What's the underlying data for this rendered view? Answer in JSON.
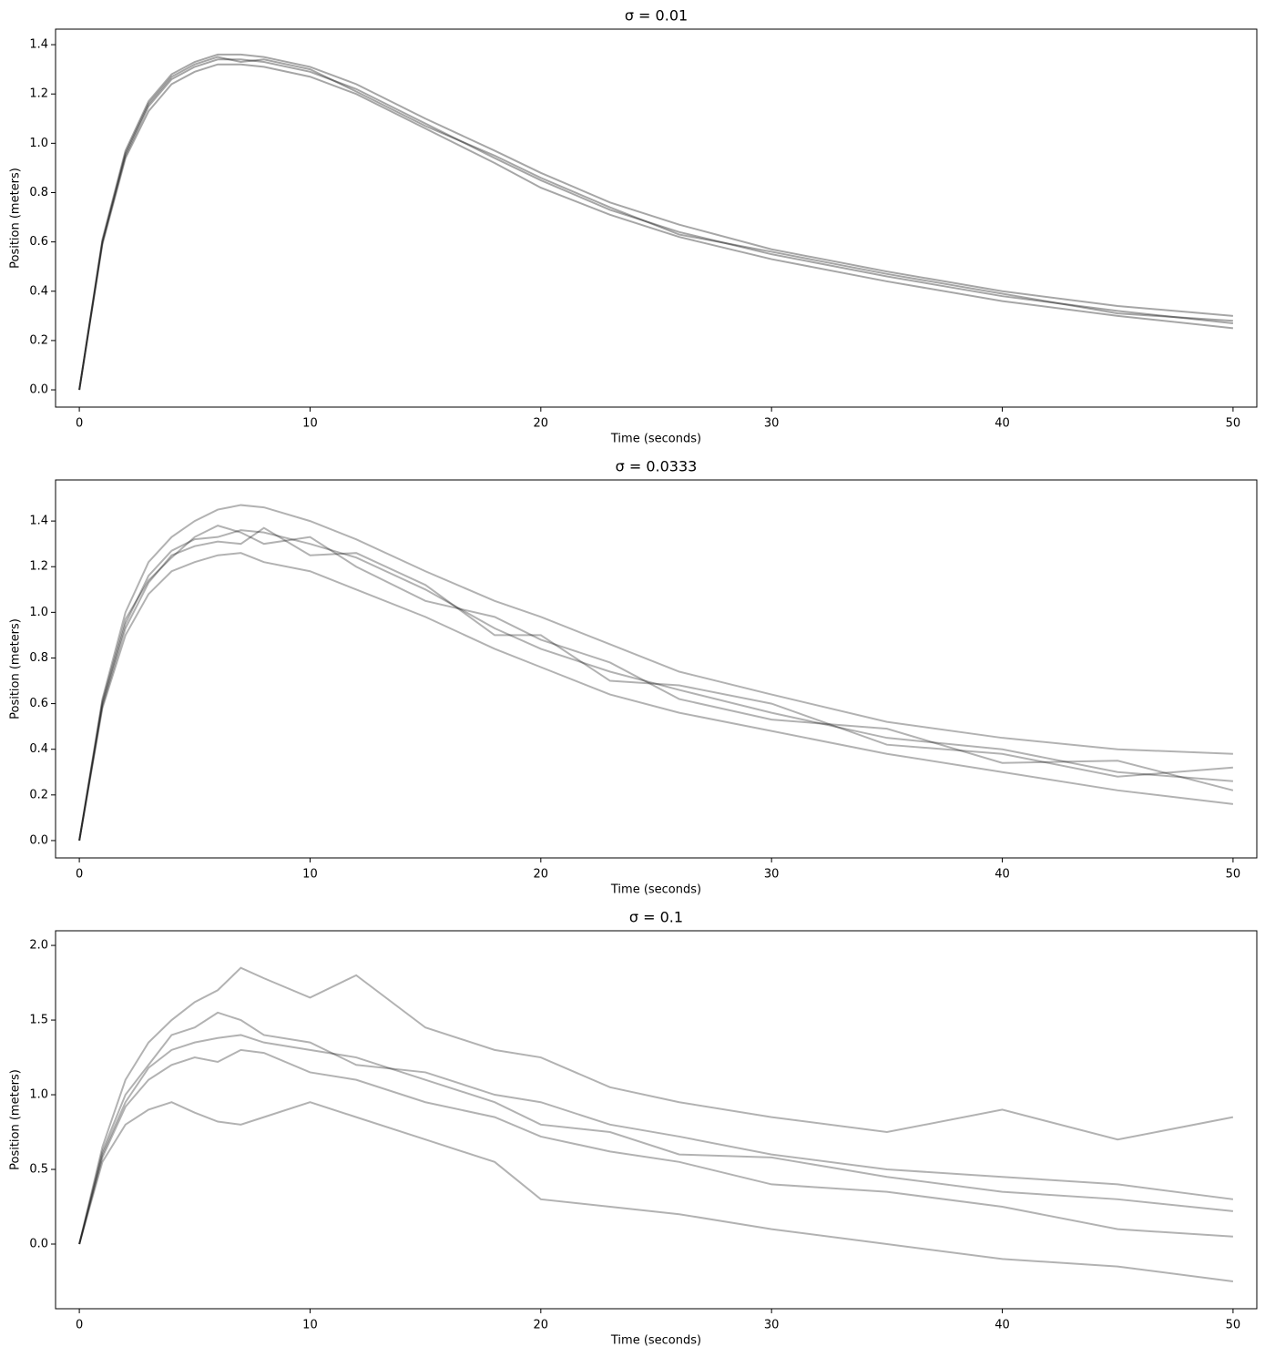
{
  "chart_data": [
    {
      "type": "line",
      "title": "σ = 0.01",
      "xlabel": "Time (seconds)",
      "ylabel": "Position (meters)",
      "x": [
        0,
        1,
        2,
        3,
        4,
        5,
        6,
        7,
        8,
        10,
        12,
        15,
        18,
        20,
        23,
        26,
        30,
        35,
        40,
        45,
        50
      ],
      "series": [
        {
          "color": "#000000",
          "values": [
            0,
            0.6,
            0.95,
            1.15,
            1.26,
            1.31,
            1.34,
            1.34,
            1.33,
            1.29,
            1.22,
            1.08,
            0.94,
            0.85,
            0.73,
            0.64,
            0.55,
            0.46,
            0.38,
            0.32,
            0.27
          ]
        },
        {
          "color": "#000000",
          "values": [
            0,
            0.61,
            0.97,
            1.17,
            1.28,
            1.33,
            1.36,
            1.36,
            1.35,
            1.31,
            1.24,
            1.1,
            0.97,
            0.88,
            0.76,
            0.67,
            0.57,
            0.48,
            0.4,
            0.34,
            0.3
          ]
        },
        {
          "color": "#000000",
          "values": [
            0,
            0.59,
            0.94,
            1.13,
            1.24,
            1.29,
            1.32,
            1.32,
            1.31,
            1.27,
            1.2,
            1.06,
            0.92,
            0.82,
            0.71,
            0.62,
            0.53,
            0.44,
            0.36,
            0.3,
            0.25
          ]
        },
        {
          "color": "#000000",
          "values": [
            0,
            0.6,
            0.96,
            1.16,
            1.27,
            1.32,
            1.35,
            1.33,
            1.34,
            1.3,
            1.21,
            1.07,
            0.95,
            0.86,
            0.74,
            0.63,
            0.56,
            0.47,
            0.39,
            0.31,
            0.28
          ]
        }
      ],
      "alpha": 0.35,
      "xlim": [
        -1.03,
        51.03
      ],
      "ylim": [
        -0.07,
        1.463
      ],
      "xticks": [
        0,
        10,
        20,
        30,
        40,
        50
      ],
      "yticks": [
        {
          "value": 0,
          "label": "0.0"
        },
        0.2,
        0.4,
        0.6,
        0.8,
        {
          "value": 1,
          "label": "1.0"
        },
        1.2,
        1.4
      ]
    },
    {
      "type": "line",
      "title": "σ = 0.0333",
      "xlabel": "Time (seconds)",
      "ylabel": "Position (meters)",
      "x": [
        0,
        1,
        2,
        3,
        4,
        5,
        6,
        7,
        8,
        10,
        12,
        15,
        18,
        20,
        23,
        26,
        30,
        35,
        40,
        45,
        50
      ],
      "series": [
        {
          "color": "#000000",
          "values": [
            0,
            0.62,
            1.0,
            1.22,
            1.33,
            1.4,
            1.45,
            1.47,
            1.46,
            1.4,
            1.32,
            1.18,
            1.05,
            0.98,
            0.86,
            0.74,
            0.64,
            0.52,
            0.45,
            0.4,
            0.38
          ]
        },
        {
          "color": "#000000",
          "values": [
            0,
            0.58,
            0.9,
            1.08,
            1.18,
            1.22,
            1.25,
            1.26,
            1.22,
            1.18,
            1.1,
            0.98,
            0.84,
            0.76,
            0.64,
            0.56,
            0.48,
            0.38,
            0.3,
            0.22,
            0.16
          ]
        },
        {
          "color": "#000000",
          "values": [
            0,
            0.6,
            0.95,
            1.16,
            1.27,
            1.32,
            1.33,
            1.36,
            1.35,
            1.3,
            1.24,
            1.1,
            0.93,
            0.84,
            0.74,
            0.66,
            0.56,
            0.45,
            0.4,
            0.3,
            0.26
          ]
        },
        {
          "color": "#000000",
          "values": [
            0,
            0.61,
            0.97,
            1.14,
            1.24,
            1.33,
            1.38,
            1.35,
            1.3,
            1.33,
            1.2,
            1.05,
            0.98,
            0.88,
            0.78,
            0.62,
            0.53,
            0.49,
            0.34,
            0.35,
            0.22
          ]
        },
        {
          "color": "#000000",
          "values": [
            0,
            0.59,
            0.93,
            1.13,
            1.25,
            1.29,
            1.31,
            1.3,
            1.37,
            1.25,
            1.26,
            1.12,
            0.9,
            0.9,
            0.7,
            0.68,
            0.6,
            0.42,
            0.38,
            0.28,
            0.32
          ]
        }
      ],
      "alpha": 0.3,
      "xlim": [
        -1.03,
        51.03
      ],
      "ylim": [
        -0.076,
        1.58
      ],
      "xticks": [
        0,
        10,
        20,
        30,
        40,
        50
      ],
      "yticks": [
        {
          "value": 0,
          "label": "0.0"
        },
        0.2,
        0.4,
        0.6,
        0.8,
        {
          "value": 1,
          "label": "1.0"
        },
        1.2,
        1.4
      ]
    },
    {
      "type": "line",
      "title": "σ = 0.1",
      "xlabel": "Time (seconds)",
      "ylabel": "Position (meters)",
      "x": [
        0,
        1,
        2,
        3,
        4,
        5,
        6,
        7,
        8,
        10,
        12,
        15,
        18,
        20,
        23,
        26,
        30,
        35,
        40,
        45,
        50
      ],
      "series": [
        {
          "color": "#000000",
          "values": [
            0,
            0.65,
            1.1,
            1.35,
            1.5,
            1.62,
            1.7,
            1.85,
            1.78,
            1.65,
            1.8,
            1.45,
            1.3,
            1.25,
            1.05,
            0.95,
            0.85,
            0.75,
            0.9,
            0.7,
            0.85
          ]
        },
        {
          "color": "#000000",
          "values": [
            0,
            0.55,
            0.8,
            0.9,
            0.95,
            0.88,
            0.82,
            0.8,
            0.85,
            0.95,
            0.85,
            0.7,
            0.55,
            0.3,
            0.25,
            0.2,
            0.1,
            0,
            -0.1,
            -0.15,
            -0.25
          ]
        },
        {
          "color": "#000000",
          "values": [
            0,
            0.6,
            0.95,
            1.18,
            1.3,
            1.35,
            1.38,
            1.4,
            1.35,
            1.3,
            1.25,
            1.1,
            0.95,
            0.8,
            0.75,
            0.6,
            0.58,
            0.45,
            0.35,
            0.3,
            0.22
          ]
        },
        {
          "color": "#000000",
          "values": [
            0,
            0.62,
            1.0,
            1.2,
            1.4,
            1.45,
            1.55,
            1.5,
            1.4,
            1.35,
            1.2,
            1.15,
            1.0,
            0.95,
            0.8,
            0.72,
            0.6,
            0.5,
            0.45,
            0.4,
            0.3
          ]
        },
        {
          "color": "#000000",
          "values": [
            0,
            0.58,
            0.92,
            1.1,
            1.2,
            1.25,
            1.22,
            1.3,
            1.28,
            1.15,
            1.1,
            0.95,
            0.85,
            0.72,
            0.62,
            0.55,
            0.4,
            0.35,
            0.25,
            0.1,
            0.05
          ]
        }
      ],
      "alpha": 0.3,
      "xlim": [
        -1.03,
        51.03
      ],
      "ylim": [
        -0.433,
        2.098
      ],
      "xticks": [
        0,
        10,
        20,
        30,
        40,
        50
      ],
      "yticks": [
        {
          "value": 0,
          "label": "0.0"
        },
        0.5,
        {
          "value": 1,
          "label": "1.0"
        },
        1.5,
        {
          "value": 2,
          "label": "2.0"
        }
      ]
    }
  ]
}
